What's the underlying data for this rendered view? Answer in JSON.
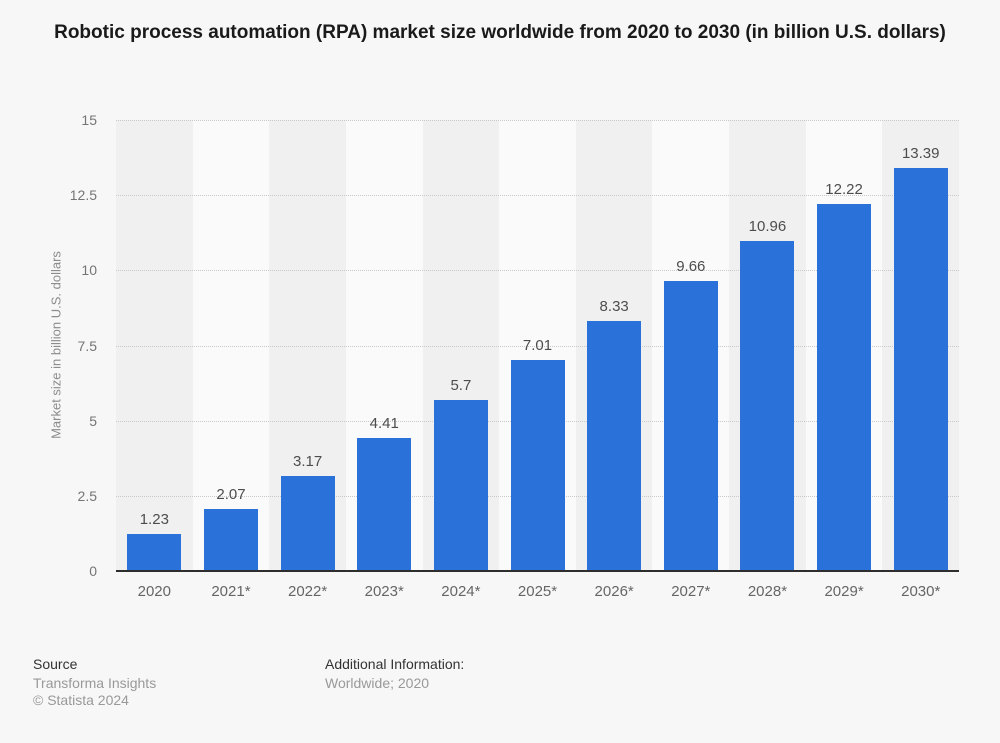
{
  "chart_data": {
    "type": "bar",
    "title": "Robotic process automation (RPA) market size worldwide from 2020 to 2030 (in billion U.S. dollars)",
    "categories": [
      "2020",
      "2021*",
      "2022*",
      "2023*",
      "2024*",
      "2025*",
      "2026*",
      "2027*",
      "2028*",
      "2029*",
      "2030*"
    ],
    "values": [
      1.23,
      2.07,
      3.17,
      4.41,
      5.7,
      7.01,
      8.33,
      9.66,
      10.96,
      12.22,
      13.39
    ],
    "value_labels": [
      "1.23",
      "2.07",
      "3.17",
      "4.41",
      "5.7",
      "7.01",
      "8.33",
      "9.66",
      "10.96",
      "12.22",
      "13.39"
    ],
    "xlabel": "",
    "ylabel": "Market size in billion U.S. dollars",
    "ylim": [
      0,
      15
    ],
    "yticks": [
      0,
      2.5,
      5,
      7.5,
      10,
      12.5,
      15
    ],
    "ytick_labels": [
      "0",
      "2.5",
      "5",
      "7.5",
      "10",
      "12.5",
      "15"
    ],
    "grid": "horizontal-dotted",
    "legend": "none",
    "bar_color": "#2a72d9"
  },
  "footer": {
    "source_label": "Source",
    "source_name": "Transforma Insights",
    "copyright": "© Statista 2024",
    "additional_label": "Additional Information:",
    "additional_value": "Worldwide; 2020"
  },
  "colors": {
    "background": "#f7f7f7",
    "stripe_dark": "#f0f0f0",
    "stripe_light": "#fafafa",
    "bar": "#2a72d9",
    "gridline": "#c9c9c9",
    "baseline": "#2e2e2e",
    "title_text": "#1a1a1a",
    "value_label_text": "#4d4d4d",
    "axis_tick_text": "#757575",
    "x_label_text": "#666666",
    "y_axis_title_text": "#8c8c8c",
    "footer_dark_text": "#333333",
    "footer_gray_text": "#999999"
  }
}
